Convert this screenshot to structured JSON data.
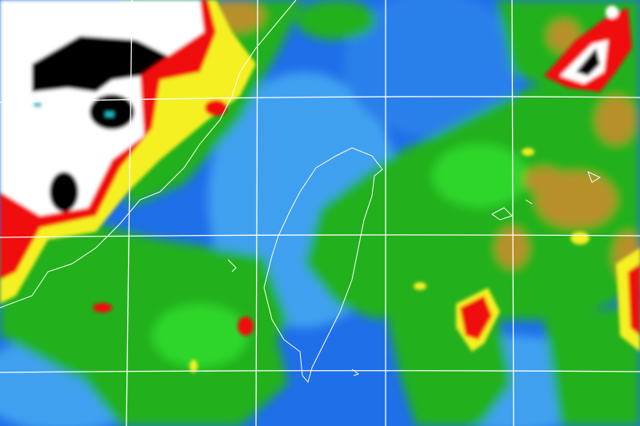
{
  "map": {
    "type": "enhanced-infrared-satellite",
    "palette": {
      "ocean_clear": "#1f6fe8",
      "low_cloud_light": "#3fa0f0",
      "cloud_green": "#22b01c",
      "cloud_bright_green": "#2fd62a",
      "tan": "#b8902a",
      "yellow": "#f5f020",
      "red": "#f01010",
      "white": "#ffffff",
      "black": "#000000",
      "cyan": "#20c0c8",
      "coastline": "#ffffff",
      "grid": "#ffffff"
    },
    "gridlines": true,
    "coastlines": true
  }
}
